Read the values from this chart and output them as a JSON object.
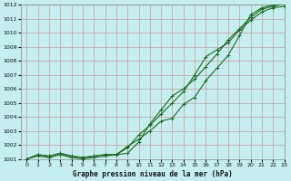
{
  "x": [
    0,
    1,
    2,
    3,
    4,
    5,
    6,
    7,
    8,
    9,
    10,
    11,
    12,
    13,
    14,
    15,
    16,
    17,
    18,
    19,
    20,
    21,
    22,
    23
  ],
  "line1": [
    1001.0,
    1001.3,
    1001.2,
    1001.4,
    1001.2,
    1001.1,
    1001.2,
    1001.3,
    1001.3,
    1001.4,
    1002.2,
    1003.5,
    1004.5,
    1005.5,
    1006.0,
    1006.7,
    1007.6,
    1008.5,
    1009.5,
    1010.3,
    1011.1,
    1011.7,
    1011.9,
    1012.1
  ],
  "line2": [
    1001.0,
    1001.3,
    1001.2,
    1001.4,
    1001.2,
    1001.1,
    1001.2,
    1001.3,
    1001.3,
    1001.8,
    1002.7,
    1003.4,
    1004.2,
    1005.0,
    1005.8,
    1007.0,
    1008.3,
    1008.8,
    1009.3,
    1010.2,
    1010.9,
    1011.5,
    1011.8,
    1011.9
  ],
  "line3": [
    1001.0,
    1001.2,
    1001.1,
    1001.3,
    1001.1,
    1001.0,
    1001.1,
    1001.2,
    1001.3,
    1001.9,
    1002.4,
    1003.0,
    1003.7,
    1003.9,
    1004.9,
    1005.4,
    1006.6,
    1007.5,
    1008.4,
    1009.8,
    1011.3,
    1011.8,
    1012.0,
    1012.1
  ],
  "xlim": [
    -0.5,
    23
  ],
  "ylim": [
    1001,
    1012
  ],
  "xlabel": "Graphe pression niveau de la mer (hPa)",
  "bg_color": "#c5eef0",
  "grid_color": "#cc9999",
  "line_color": "#1a6b1a",
  "yticks": [
    1001,
    1002,
    1003,
    1004,
    1005,
    1006,
    1007,
    1008,
    1009,
    1010,
    1011,
    1012
  ],
  "xticks": [
    0,
    1,
    2,
    3,
    4,
    5,
    6,
    7,
    8,
    9,
    10,
    11,
    12,
    13,
    14,
    15,
    16,
    17,
    18,
    19,
    20,
    21,
    22,
    23
  ],
  "xlabel_fontsize": 5.5,
  "tick_fontsize": 4.5
}
